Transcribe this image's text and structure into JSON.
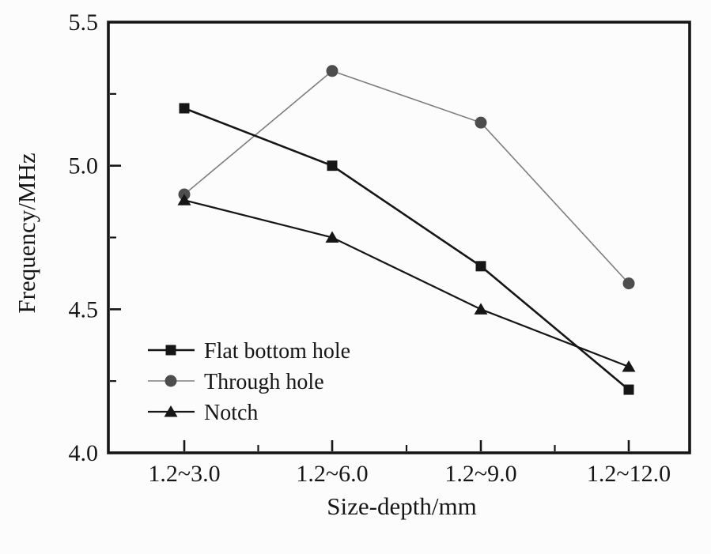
{
  "figure": {
    "background": "#fcfcfc",
    "frame_color": "#161616",
    "text_color": "#161616"
  },
  "chart_data": {
    "type": "line",
    "title": "",
    "xlabel": "Size-depth/mm",
    "ylabel": "Frequency/MHz",
    "categories": [
      "1.2~3.0",
      "1.2~6.0",
      "1.2~9.0",
      "1.2~12.0"
    ],
    "series": [
      {
        "name": "Flat bottom hole",
        "marker": "square",
        "marker_color": "#161616",
        "line_color": "#161616",
        "line_width": 2.6,
        "values": [
          5.2,
          5.0,
          4.65,
          4.22
        ]
      },
      {
        "name": "Through hole",
        "marker": "circle",
        "marker_color": "#4d4d4d",
        "line_color": "#7e7e7e",
        "line_width": 1.6,
        "values": [
          4.9,
          5.33,
          5.15,
          4.59
        ]
      },
      {
        "name": "Notch",
        "marker": "triangle",
        "marker_color": "#161616",
        "line_color": "#161616",
        "line_width": 2.2,
        "values": [
          4.88,
          4.75,
          4.5,
          4.3
        ]
      }
    ],
    "ylim": [
      4.0,
      5.5
    ],
    "y_major_ticks": [
      4.0,
      4.5,
      5.0,
      5.5
    ],
    "y_tick_labels": [
      "4.0",
      "4.5",
      "5.0",
      "5.5"
    ],
    "y_minor_ticks": [
      4.25,
      4.75,
      5.25
    ],
    "grid": false,
    "legend_position": "inside-lower-left"
  }
}
